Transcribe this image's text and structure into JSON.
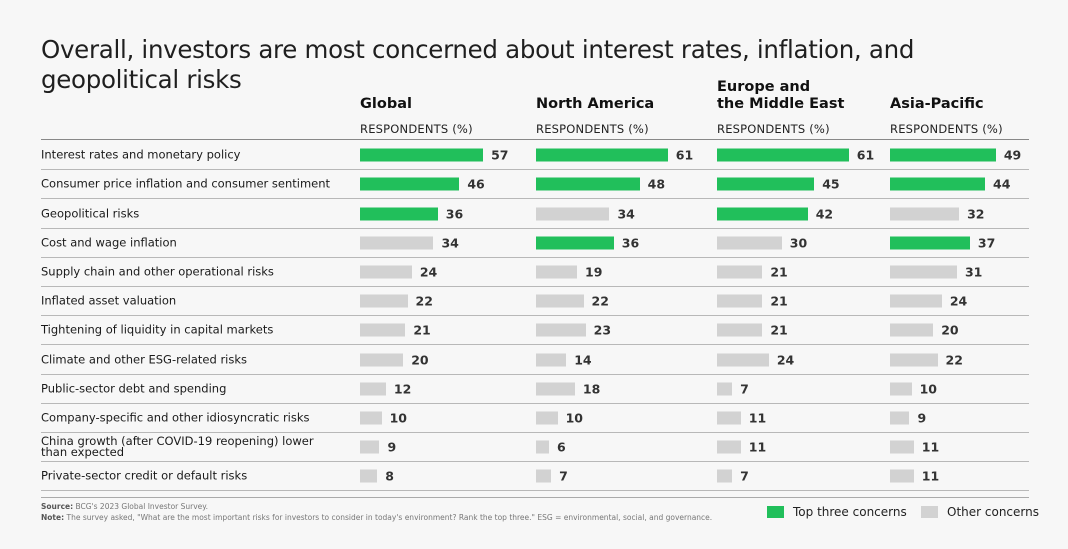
{
  "chart_data": {
    "type": "bar",
    "title": "Overall, investors are most concerned about interest rates, inflation, and geopolitical risks",
    "xlabel": "RESPONDENTS (%)",
    "ylabel": "",
    "xlim": [
      0,
      100
    ],
    "categories": [
      "Interest rates and monetary policy",
      "Consumer price inflation and consumer sentiment",
      "Geopolitical risks",
      "Cost and wage inflation",
      "Supply chain and other operational risks",
      "Inflated asset valuation",
      "Tightening of liquidity in capital markets",
      "Climate and other ESG-related risks",
      "Public-sector debt and spending",
      "Company-specific and other idiosyncratic risks",
      "China growth (after COVID-19 reopening) lower than expected",
      "Private-sector credit or default risks"
    ],
    "series": [
      {
        "name": "Global",
        "subtitle": "RESPONDENTS (%)",
        "values": [
          57,
          46,
          36,
          34,
          24,
          22,
          21,
          20,
          12,
          10,
          9,
          8
        ],
        "top_three": [
          true,
          true,
          true,
          false,
          false,
          false,
          false,
          false,
          false,
          false,
          false,
          false
        ]
      },
      {
        "name": "North America",
        "subtitle": "RESPONDENTS (%)",
        "values": [
          61,
          48,
          34,
          36,
          19,
          22,
          23,
          14,
          18,
          10,
          6,
          7
        ],
        "top_three": [
          true,
          true,
          false,
          true,
          false,
          false,
          false,
          false,
          false,
          false,
          false,
          false
        ]
      },
      {
        "name": "Europe and the Middle East",
        "name_lines": [
          "Europe and",
          "the Middle East"
        ],
        "subtitle": "RESPONDENTS (%)",
        "values": [
          61,
          45,
          42,
          30,
          21,
          21,
          21,
          24,
          7,
          11,
          11,
          7
        ],
        "top_three": [
          true,
          true,
          true,
          false,
          false,
          false,
          false,
          false,
          false,
          false,
          false,
          false
        ]
      },
      {
        "name": "Asia-Pacific",
        "subtitle": "RESPONDENTS (%)",
        "values": [
          49,
          44,
          32,
          37,
          31,
          24,
          20,
          22,
          10,
          9,
          11,
          11
        ],
        "top_three": [
          true,
          true,
          false,
          true,
          false,
          false,
          false,
          false,
          false,
          false,
          false,
          false
        ]
      }
    ],
    "legend": {
      "position": "bottom-right",
      "items": [
        {
          "label": "Top three concerns",
          "color": "#21bf5b"
        },
        {
          "label": "Other concerns",
          "color": "#d2d2d2"
        }
      ]
    },
    "grid": false
  },
  "colors": {
    "top": "#21bf5b",
    "other": "#d2d2d2"
  },
  "footer": {
    "source_label": "Source:",
    "source_text": " BCG's 2023 Global Investor Survey.",
    "note_label": "Note:",
    "note_text": " The survey asked, \"What are the most important risks for investors to consider in today's environment? Rank the top three.\" ESG = environmental, social, and governance."
  }
}
